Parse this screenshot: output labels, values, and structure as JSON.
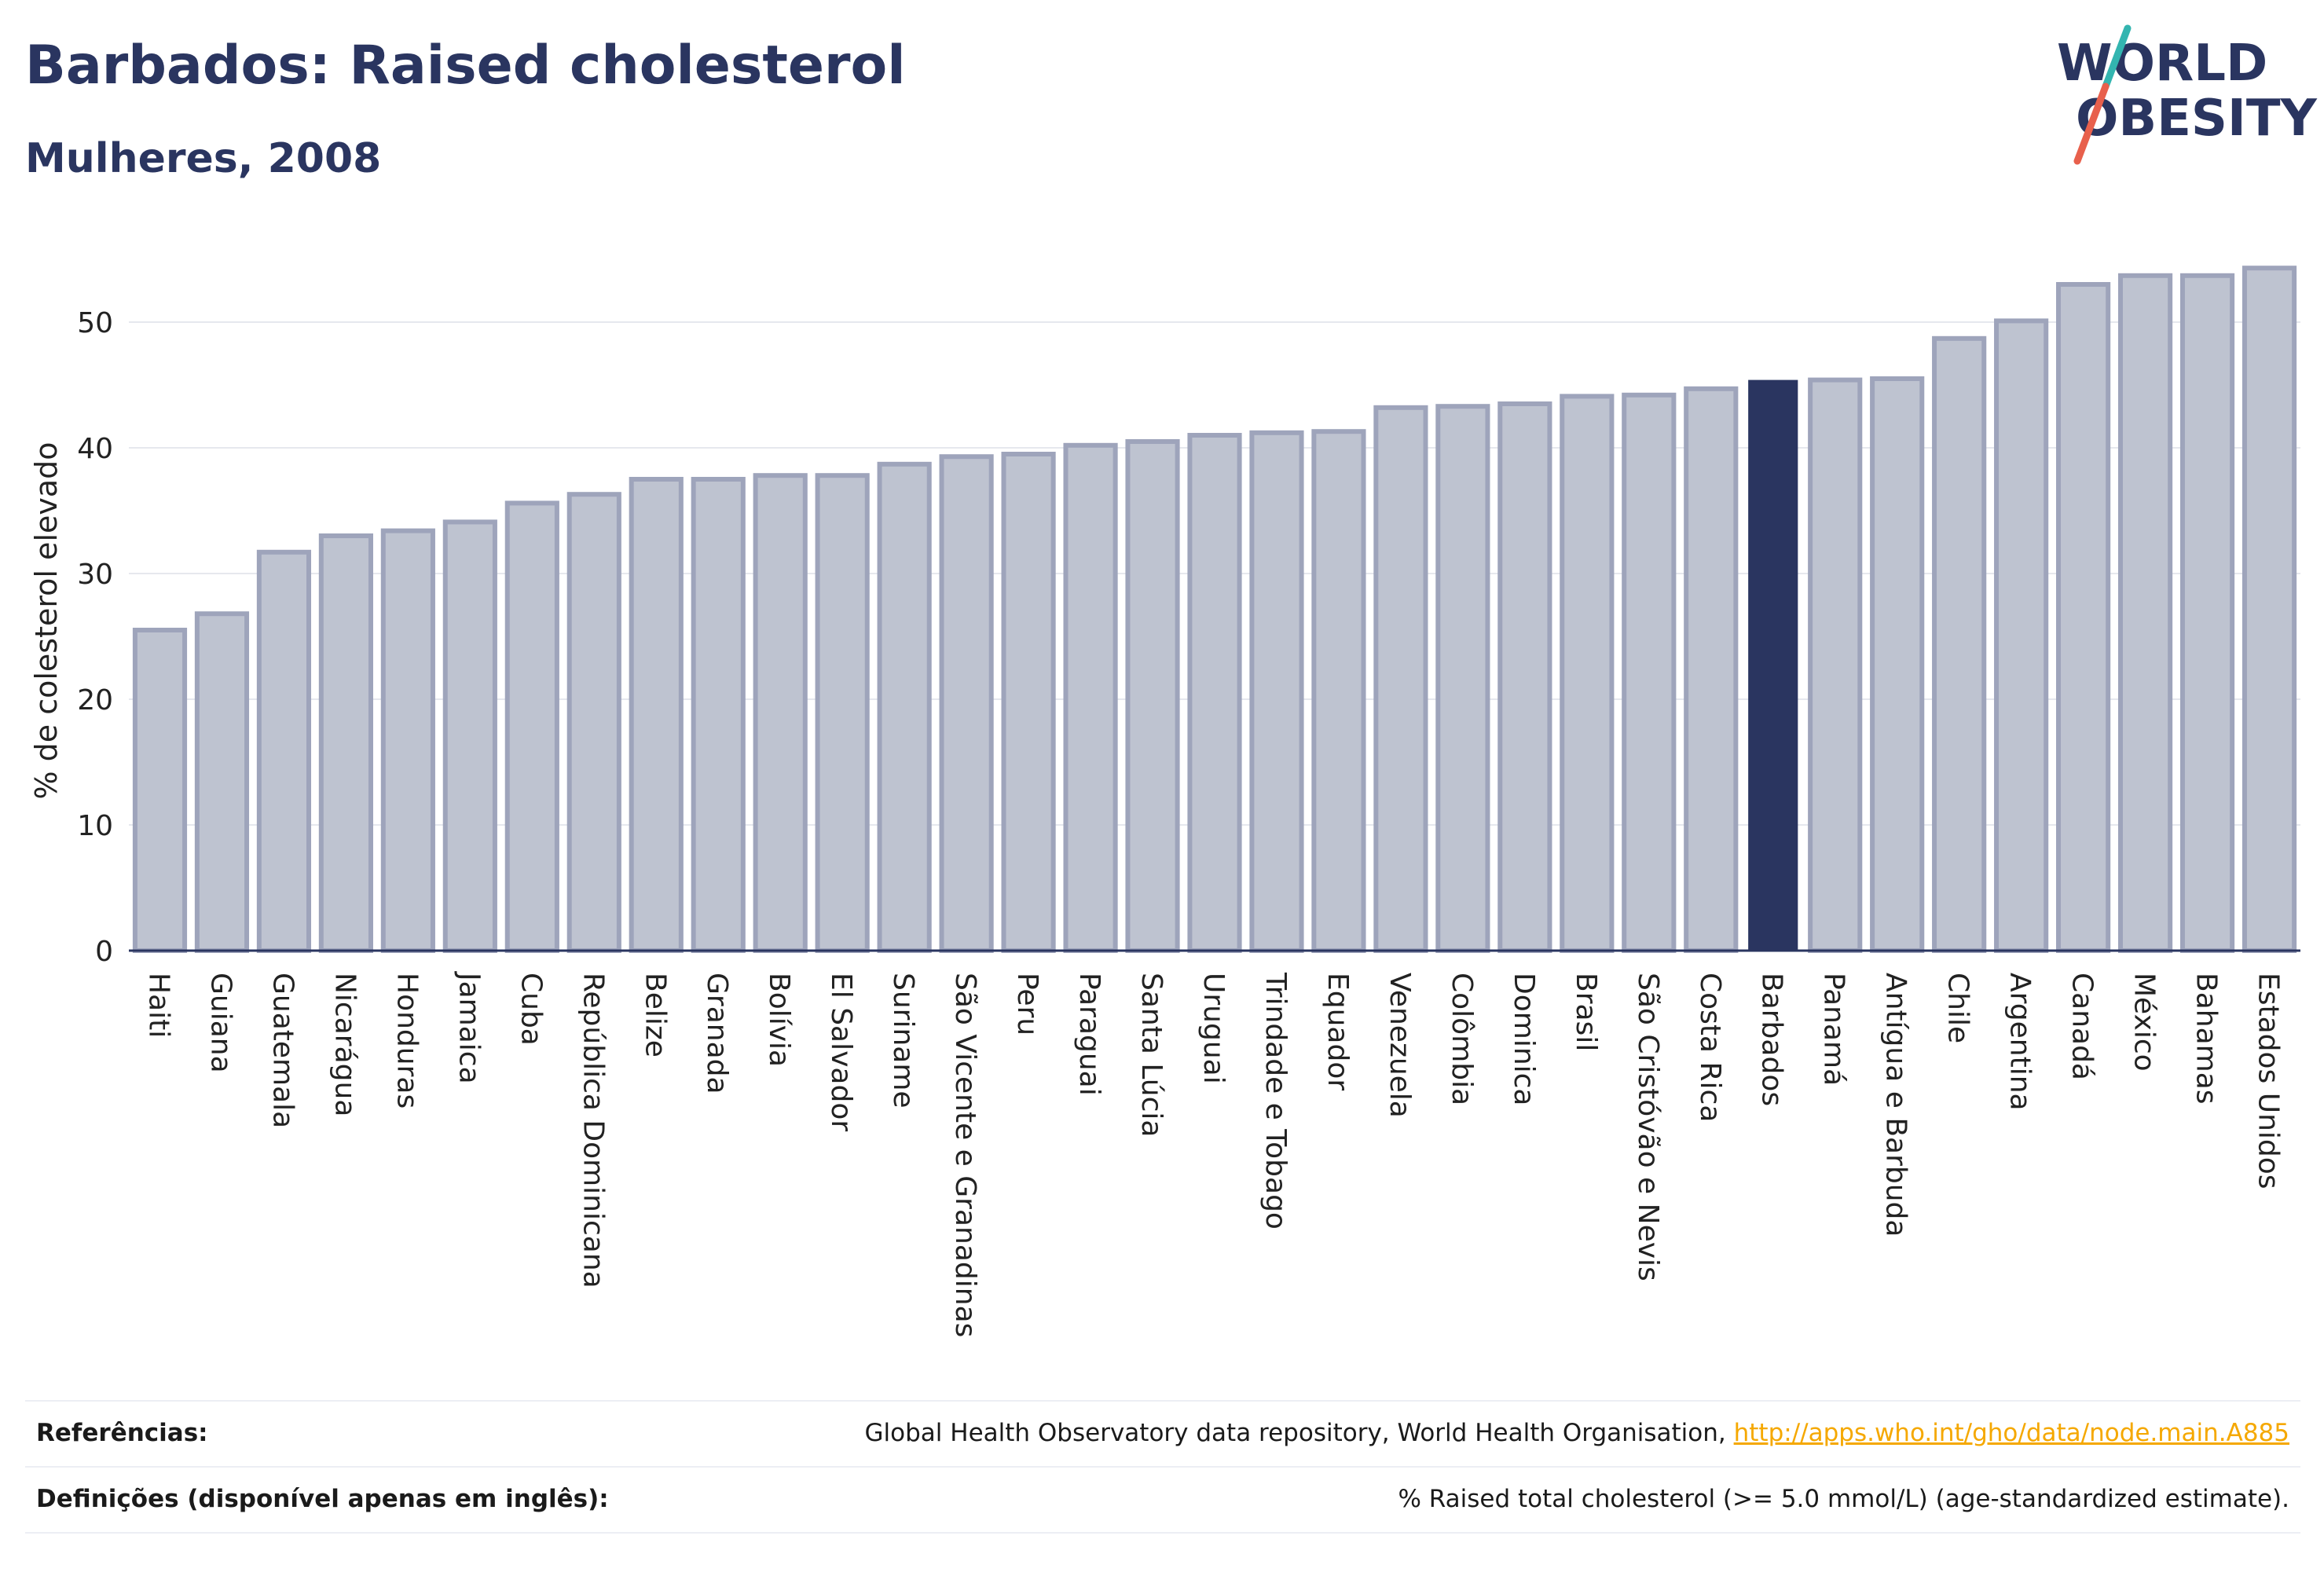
{
  "header": {
    "title": "Barbados: Raised cholesterol",
    "subtitle": "Mulheres, 2008"
  },
  "logo": {
    "line1": "WORLD",
    "line2": "OBESITY",
    "colors": {
      "text": "#2a3560",
      "slash_top": "#33b5b0",
      "slash_bottom": "#e8604c"
    }
  },
  "chart_data": {
    "type": "bar",
    "ylabel": "% de colesterol elevado",
    "ylim": [
      0,
      55
    ],
    "yticks": [
      0,
      10,
      20,
      30,
      40,
      50
    ],
    "grid": true,
    "highlight": "Barbados",
    "colors": {
      "bar": "#bec3d0",
      "bar_edge": "#9ea4bb",
      "highlight": "#2a3560"
    },
    "categories": [
      "Haiti",
      "Guiana",
      "Guatemala",
      "Nicarágua",
      "Honduras",
      "Jamaica",
      "Cuba",
      "República Dominicana",
      "Belize",
      "Granada",
      "Bolívia",
      "El Salvador",
      "Suriname",
      "São Vicente e Granadinas",
      "Peru",
      "Paraguai",
      "Santa Lúcia",
      "Uruguai",
      "Trindade e Tobago",
      "Equador",
      "Venezuela",
      "Colômbia",
      "Dominica",
      "Brasil",
      "São Cristóvão e Nevis",
      "Costa Rica",
      "Barbados",
      "Panamá",
      "Antígua e Barbuda",
      "Chile",
      "Argentina",
      "Canadá",
      "México",
      "Bahamas",
      "Estados Unidos"
    ],
    "values": [
      25.5,
      26.8,
      31.7,
      33.0,
      33.4,
      34.1,
      35.6,
      36.3,
      37.5,
      37.5,
      37.8,
      37.8,
      38.7,
      39.3,
      39.5,
      40.2,
      40.5,
      41.0,
      41.2,
      41.3,
      43.2,
      43.3,
      43.5,
      44.1,
      44.2,
      44.7,
      45.4,
      45.4,
      45.5,
      48.7,
      50.1,
      53.0,
      53.7,
      53.7,
      54.3
    ]
  },
  "footer": {
    "references_label": "Referências:",
    "references_text": "Global Health Observatory data repository, World Health Organisation,",
    "references_link": "http://apps.who.int/gho/data/node.main.A885",
    "definitions_label": "Definições (disponível apenas em inglês):",
    "definitions_text": "% Raised total cholesterol (>= 5.0 mmol/L) (age-standardized estimate)."
  }
}
